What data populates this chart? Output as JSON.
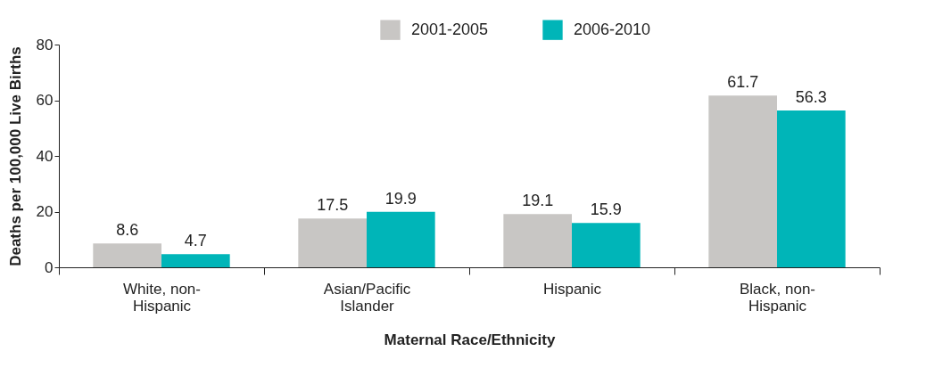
{
  "chart_data": {
    "type": "bar",
    "xlabel": "Maternal Race/Ethnicity",
    "ylabel": "Deaths per 100,000 Live Births",
    "categories": [
      "White, non-Hispanic",
      "Asian/Pacific Islander",
      "Hispanic",
      "Black, non-Hispanic"
    ],
    "series": [
      {
        "name": "2001-2005",
        "color": "#c8c6c4",
        "values": [
          8.6,
          17.5,
          19.1,
          61.7
        ]
      },
      {
        "name": "2006-2010",
        "color": "#00b5b8",
        "values": [
          4.7,
          19.9,
          15.9,
          56.3
        ]
      }
    ],
    "ylim": [
      0,
      80
    ],
    "yticks": [
      0,
      20,
      40,
      60,
      80
    ],
    "grid": false,
    "legend": "top",
    "data_labels": true
  }
}
